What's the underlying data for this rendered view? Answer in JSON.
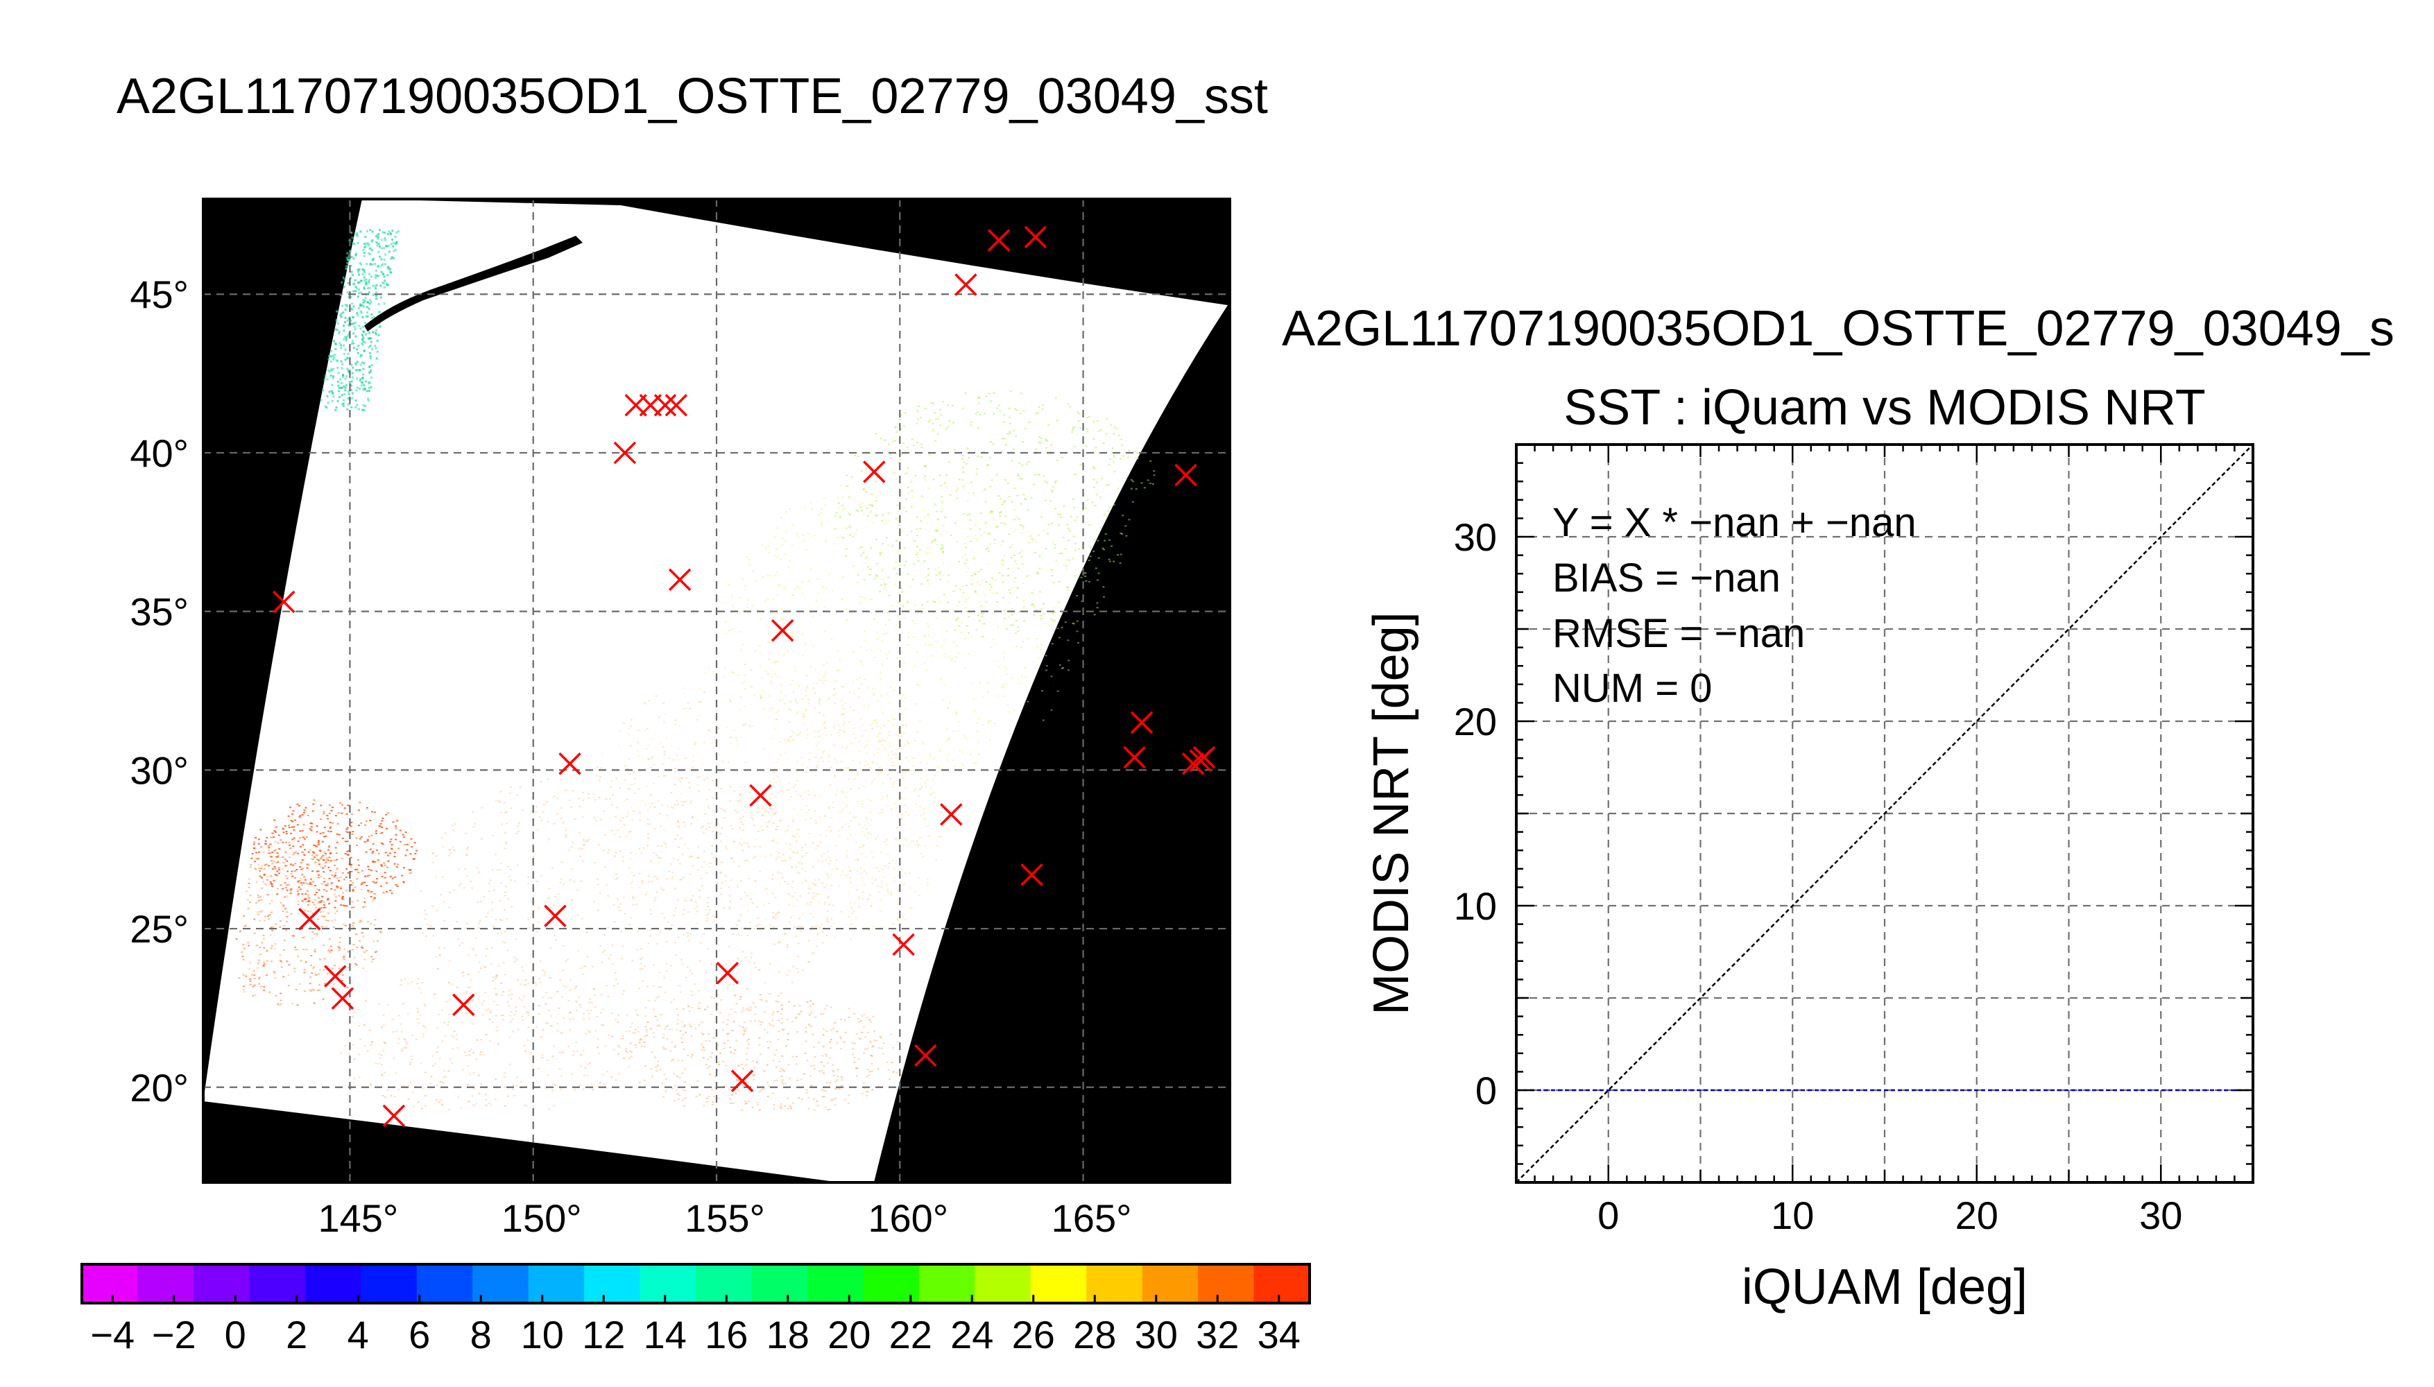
{
  "figure": {
    "main_title": "A2GL11707190035OD1_OSTTE_02779_03049_sst"
  },
  "chart_data": [
    {
      "type": "scatter",
      "panel": "map",
      "title": "",
      "xlabel": "",
      "ylabel": "",
      "x_range": [
        141,
        169
      ],
      "y_range": [
        17,
        48
      ],
      "x_ticks": [
        145,
        150,
        155,
        160,
        165
      ],
      "x_tick_labels": [
        "145°",
        "150°",
        "155°",
        "160°",
        "165°"
      ],
      "y_ticks": [
        20,
        25,
        30,
        35,
        40,
        45
      ],
      "y_tick_labels": [
        "20°",
        "25°",
        "30°",
        "35°",
        "40°",
        "45°"
      ],
      "grid": true,
      "background": "#000000",
      "swath_color": "#ffffff",
      "marker": "x",
      "marker_color": "#ff0000",
      "series": [
        {
          "x": [
            162.7,
            163.7,
            161.8,
            152.8,
            153.2,
            153.6,
            153.9,
            152.5,
            159.3,
            167.8,
            143.2,
            154.0,
            156.8,
            166.6,
            166.4,
            168.0,
            168.3,
            168.2,
            151.0,
            156.2,
            161.4,
            163.6,
            143.9,
            150.6,
            160.1,
            144.6,
            144.8,
            148.1,
            155.3,
            160.7,
            155.7,
            146.2
          ],
          "y": [
            46.7,
            46.8,
            45.3,
            41.5,
            41.5,
            41.5,
            41.5,
            40.0,
            39.4,
            39.3,
            35.3,
            36.0,
            34.4,
            31.5,
            30.4,
            30.2,
            30.4,
            30.3,
            30.2,
            29.2,
            28.6,
            26.7,
            25.3,
            25.4,
            24.5,
            23.5,
            22.8,
            22.6,
            23.6,
            21.0,
            20.2,
            19.1
          ]
        }
      ]
    },
    {
      "type": "scatter",
      "panel": "scatter",
      "title": "A2GL11707190035OD1_OSTTE_02779_03049_s",
      "subtitle": "SST : iQuam vs MODIS NRT",
      "xlabel": "iQUAM [deg]",
      "ylabel": "MODIS NRT [deg]",
      "xlim": [
        -5,
        35
      ],
      "ylim": [
        -5,
        35
      ],
      "x_ticks": [
        0,
        10,
        20,
        30
      ],
      "y_ticks": [
        0,
        10,
        20,
        30
      ],
      "grid": true,
      "stats": {
        "equation": "Y = X * −nan + −nan",
        "bias": "BIAS = −nan",
        "rmse": "RMSE = −nan",
        "num": "NUM = 0"
      },
      "reference_lines": [
        {
          "name": "",
          "kind": "identity",
          "color": "#000000"
        },
        {
          "name": "",
          "kind": "horizontal",
          "y": 0,
          "color": "#0000cc"
        }
      ],
      "x": [],
      "y": []
    },
    {
      "type": "heatmap",
      "panel": "colorbar",
      "title": "",
      "range": [
        -5,
        35
      ],
      "tick_values": [
        -4,
        -2,
        0,
        2,
        4,
        6,
        8,
        10,
        12,
        14,
        16,
        18,
        20,
        22,
        24,
        26,
        28,
        30,
        32,
        34
      ],
      "tick_labels": [
        "−4",
        "−2",
        "0",
        "2",
        "4",
        "6",
        "8",
        "10",
        "12",
        "14",
        "16",
        "18",
        "20",
        "22",
        "24",
        "26",
        "28",
        "30",
        "32",
        "34"
      ],
      "colors": [
        "#e600ff",
        "#b300ff",
        "#8000ff",
        "#4d00ff",
        "#1a00ff",
        "#0019ff",
        "#004cff",
        "#0080ff",
        "#00b2ff",
        "#00e5ff",
        "#00ffcc",
        "#00ff99",
        "#00ff66",
        "#00ff33",
        "#1aff00",
        "#66ff00",
        "#b3ff00",
        "#ffff00",
        "#ffcc00",
        "#ff9900",
        "#ff6600",
        "#ff3300"
      ]
    }
  ]
}
